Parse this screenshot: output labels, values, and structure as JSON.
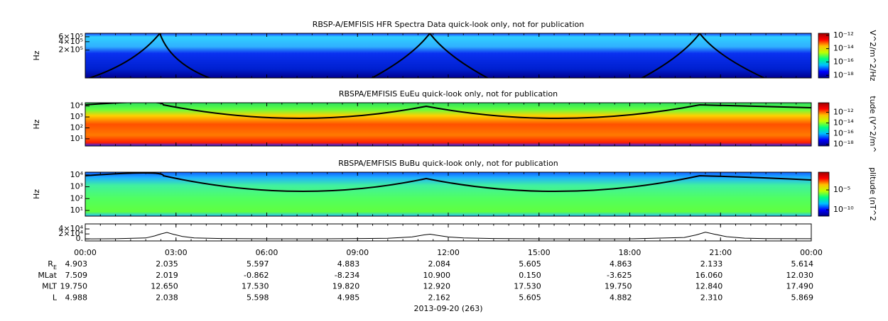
{
  "chart_data": [
    {
      "type": "spectrogram",
      "title": "RBSP-A/EMFISIS  HFR Spectra Data quick-look only, not for publication",
      "ylabel": "Hz",
      "log_y": true,
      "ylim": [
        20000,
        800000
      ],
      "yticks": [
        {
          "value": 200000,
          "label": "2×10⁵"
        },
        {
          "value": 400000,
          "label": "4×10⁵"
        },
        {
          "value": 600000,
          "label": "6×10⁵"
        }
      ],
      "colorbar_label": "V^2/m^2/Hz",
      "clim": [
        4e-19,
        2e-12
      ],
      "cticks": [
        {
          "value": 1e-12,
          "label": "10⁻¹²"
        },
        {
          "value": 1e-14,
          "label": "10⁻¹⁴"
        },
        {
          "value": 1e-16,
          "label": "10⁻¹⁶"
        },
        {
          "value": 1e-18,
          "label": "10⁻¹⁸"
        }
      ],
      "colormap": [
        "#000080",
        "#0000ff",
        "#00c0ff",
        "#00ff80",
        "#c0ff00",
        "#ffc000",
        "#ff0000",
        "#a00000"
      ]
    },
    {
      "type": "spectrogram",
      "title": "RBSPA/EMFISIS  EuEu quick-look only, not for publication",
      "ylabel": "Hz",
      "log_y": true,
      "ylim": [
        2.2,
        20000
      ],
      "yticks": [
        {
          "value": 10,
          "label": "10¹"
        },
        {
          "value": 100,
          "label": "10²"
        },
        {
          "value": 1000,
          "label": "10³"
        },
        {
          "value": 10000,
          "label": "10⁴"
        }
      ],
      "colorbar_label": "tude (V^2/m^",
      "clim": [
        5e-19,
        6e-11
      ],
      "cticks": [
        {
          "value": 1e-12,
          "label": "10⁻¹²"
        },
        {
          "value": 1e-14,
          "label": "10⁻¹⁴"
        },
        {
          "value": 1e-16,
          "label": "10⁻¹⁶"
        },
        {
          "value": 1e-18,
          "label": "10⁻¹⁸"
        }
      ],
      "colormap": [
        "#000080",
        "#0000ff",
        "#00c0ff",
        "#00ff80",
        "#c0ff00",
        "#ffc000",
        "#ff0000",
        "#a00000"
      ]
    },
    {
      "type": "spectrogram",
      "title": "RBSPA/EMFISIS  BuBu quick-look only, not for publication",
      "ylabel": "Hz",
      "log_y": true,
      "ylim": [
        3.3,
        17000
      ],
      "yticks": [
        {
          "value": 10,
          "label": "10¹"
        },
        {
          "value": 100,
          "label": "10²"
        },
        {
          "value": 1000,
          "label": "10³"
        },
        {
          "value": 10000,
          "label": "10⁴"
        }
      ],
      "colorbar_label": "plitude (nT^2",
      "clim": [
        2.5e-12,
        0.3
      ],
      "cticks": [
        {
          "value": 1e-05,
          "label": "10⁻⁵"
        },
        {
          "value": 1e-10,
          "label": "10⁻¹⁰"
        }
      ],
      "colormap": [
        "#000080",
        "#0000ff",
        "#00c0ff",
        "#00ff80",
        "#c0ff00",
        "#ffc000",
        "#ff0000",
        "#a00000"
      ]
    },
    {
      "type": "line",
      "color": "#000000",
      "ylim": [
        -8000,
        60000
      ],
      "yticks": [
        {
          "value": 0,
          "label": "0."
        },
        {
          "value": 20000,
          "label": "2×10⁴"
        },
        {
          "value": 40000,
          "label": "4×10⁴"
        }
      ],
      "x": [
        0,
        1,
        2,
        2.3,
        2.5,
        2.7,
        2.9,
        3.2,
        3.6,
        4.5,
        6,
        8,
        10,
        10.8,
        11.2,
        11.4,
        11.6,
        12,
        12.5,
        13.5,
        15,
        18,
        19.8,
        20.2,
        20.5,
        20.8,
        21.2,
        21.8,
        22.5,
        24
      ],
      "values": [
        300,
        800,
        4000,
        12000,
        20000,
        26000,
        19000,
        10000,
        4000,
        1500,
        500,
        400,
        2500,
        8000,
        16000,
        19000,
        15000,
        8000,
        4000,
        1500,
        500,
        500,
        6000,
        16000,
        27000,
        19000,
        9000,
        3000,
        1200,
        700
      ]
    }
  ],
  "time_axis": {
    "xlim": [
      0,
      24
    ],
    "xlabel": "2013-09-20 (263)",
    "xticks": [
      {
        "value": 0,
        "label": "00:00"
      },
      {
        "value": 3,
        "label": "03:00"
      },
      {
        "value": 6,
        "label": "06:00"
      },
      {
        "value": 9,
        "label": "09:00"
      },
      {
        "value": 12,
        "label": "12:00"
      },
      {
        "value": 15,
        "label": "15:00"
      },
      {
        "value": 18,
        "label": "18:00"
      },
      {
        "value": 21,
        "label": "21:00"
      },
      {
        "value": 24,
        "label": "00:00"
      }
    ]
  },
  "ephemeris": {
    "rows": [
      {
        "label": "R",
        "sub": "E",
        "values": [
          "4.903",
          "2.035",
          "5.597",
          "4.883",
          "2.084",
          "5.605",
          "4.863",
          "2.133",
          "5.614"
        ]
      },
      {
        "label": "MLat",
        "values": [
          "7.509",
          "2.019",
          "-0.862",
          "-8.234",
          "10.900",
          "0.150",
          "-3.625",
          "16.060",
          "12.030"
        ]
      },
      {
        "label": "MLT",
        "values": [
          "19.750",
          "12.650",
          "17.530",
          "19.820",
          "12.920",
          "17.530",
          "19.750",
          "12.840",
          "17.490"
        ]
      },
      {
        "label": "L",
        "values": [
          "4.988",
          "2.038",
          "5.598",
          "4.985",
          "2.162",
          "5.605",
          "4.882",
          "2.310",
          "5.869"
        ]
      }
    ]
  }
}
